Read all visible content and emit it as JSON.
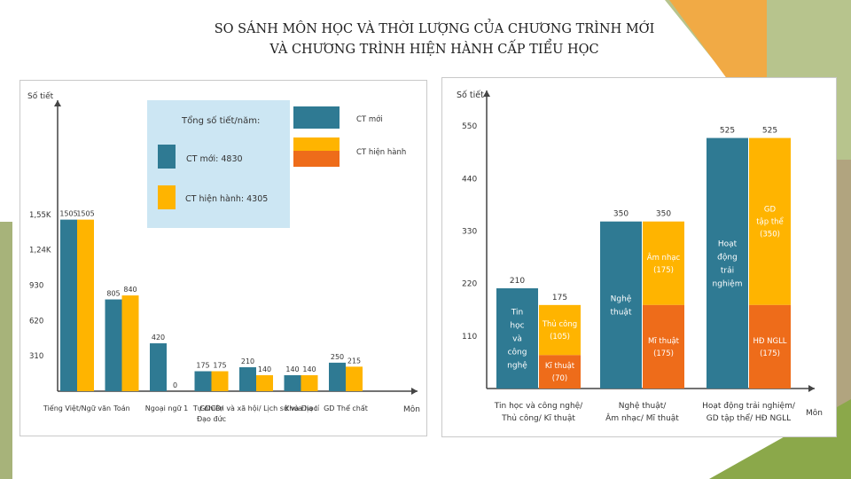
{
  "title_lines": [
    "SO SÁNH MÔN HỌC VÀ THỜI LƯỢNG CỦA CHƯƠNG TRÌNH MỚI",
    "VÀ CHƯƠNG TRÌNH HIỆN HÀNH CẤP TIỂU HỌC"
  ],
  "colors": {
    "new": "#2f7a93",
    "current": "#ffb400",
    "current_dark": "#ee6c1a",
    "legend_box": "#cce6f3",
    "accent_green": "#8ba84a",
    "accent_orange": "#f0a640",
    "accent_tan": "#b1a47f"
  },
  "chart_data": [
    {
      "type": "bar",
      "ylabel": "Số tiết",
      "xlabel": "Môn",
      "yticks": [
        {
          "value": 310,
          "label": "310"
        },
        {
          "value": 620,
          "label": "620"
        },
        {
          "value": 930,
          "label": "930"
        },
        {
          "value": 1240,
          "label": "1,24K"
        },
        {
          "value": 1550,
          "label": "1,55K"
        }
      ],
      "ylim": [
        0,
        1750
      ],
      "categories": [
        [
          "Tiếng Việt/Ngữ văn"
        ],
        [
          "Toán"
        ],
        [
          "Ngoại ngữ 1"
        ],
        [
          "GDCD/",
          "Đạo đức"
        ],
        [
          "Tự nhiên và xã hội/ Lịch sử và Địa lí"
        ],
        [
          "Khoa học"
        ],
        [
          "GD Thể chất"
        ]
      ],
      "series": [
        {
          "name": "CT mới",
          "values": [
            1505,
            805,
            420,
            175,
            210,
            140,
            250
          ]
        },
        {
          "name": "CT hiện hành",
          "values": [
            1505,
            840,
            0,
            175,
            140,
            140,
            215
          ]
        }
      ],
      "data_labels": {
        "new": [
          "1505",
          "805",
          "420",
          "175",
          "210",
          "140",
          "250"
        ],
        "current": [
          "1505",
          "840",
          "0",
          "175",
          "140",
          "140",
          "215"
        ]
      },
      "legend": {
        "heading": "Tổng số tiết/năm:",
        "total_new": "CT mới: 4830",
        "total_current": "CT hiện hành: 4305",
        "new_label": "CT mới",
        "current_label": "CT hiện hành"
      },
      "grid": false
    },
    {
      "type": "bar",
      "ylabel": "Số tiết",
      "xlabel": "Môn",
      "yticks": [
        110,
        220,
        330,
        440,
        550
      ],
      "ylim": [
        0,
        600
      ],
      "groups": [
        {
          "label": [
            "Tin học và công nghệ/",
            "Thủ công/ Kĩ thuật"
          ],
          "new": {
            "value": 210,
            "label": "210",
            "text": [
              "Tin",
              "học",
              "và",
              "công",
              "nghệ"
            ]
          },
          "current_total": {
            "value": 175,
            "label": "175"
          },
          "current_parts": [
            {
              "value": 105,
              "text": [
                "Thủ công",
                "(105)"
              ],
              "tone": "current"
            },
            {
              "value": 70,
              "text": [
                "Kĩ thuật",
                "(70)"
              ],
              "tone": "current_dark"
            }
          ]
        },
        {
          "label": [
            "Nghệ thuật/",
            "Âm nhạc/ Mĩ thuật"
          ],
          "new": {
            "value": 350,
            "label": "350",
            "text": [
              "Nghệ",
              "thuật"
            ]
          },
          "current_total": {
            "value": 350,
            "label": "350"
          },
          "current_parts": [
            {
              "value": 175,
              "text": [
                "Âm nhạc",
                "(175)"
              ],
              "tone": "current"
            },
            {
              "value": 175,
              "text": [
                "Mĩ thuật",
                "(175)"
              ],
              "tone": "current_dark"
            }
          ]
        },
        {
          "label": [
            "Hoạt động trải nghiệm/",
            "GD tập thể/ HĐ NGLL"
          ],
          "new": {
            "value": 525,
            "label": "525",
            "text": [
              "Hoạt",
              "động",
              "trải",
              "nghiệm"
            ]
          },
          "current_total": {
            "value": 525,
            "label": "525"
          },
          "current_parts": [
            {
              "value": 350,
              "text": [
                "GD",
                "tập thể",
                "(350)"
              ],
              "tone": "current"
            },
            {
              "value": 175,
              "text": [
                "HĐ NGLL",
                "(175)"
              ],
              "tone": "current_dark"
            }
          ]
        }
      ],
      "grid": false
    }
  ]
}
